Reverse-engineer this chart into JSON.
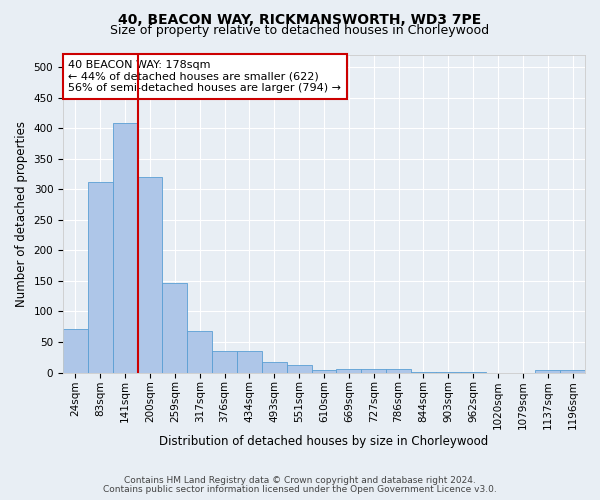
{
  "title1": "40, BEACON WAY, RICKMANSWORTH, WD3 7PE",
  "title2": "Size of property relative to detached houses in Chorleywood",
  "xlabel": "Distribution of detached houses by size in Chorleywood",
  "ylabel": "Number of detached properties",
  "footer1": "Contains HM Land Registry data © Crown copyright and database right 2024.",
  "footer2": "Contains public sector information licensed under the Open Government Licence v3.0.",
  "categories": [
    "24sqm",
    "83sqm",
    "141sqm",
    "200sqm",
    "259sqm",
    "317sqm",
    "376sqm",
    "434sqm",
    "493sqm",
    "551sqm",
    "610sqm",
    "669sqm",
    "727sqm",
    "786sqm",
    "844sqm",
    "903sqm",
    "962sqm",
    "1020sqm",
    "1079sqm",
    "1137sqm",
    "1196sqm"
  ],
  "values": [
    72,
    312,
    408,
    320,
    147,
    68,
    36,
    36,
    17,
    12,
    5,
    6,
    6,
    6,
    1,
    1,
    1,
    0,
    0,
    4,
    4
  ],
  "bar_color": "#aec6e8",
  "bar_edge_color": "#5a9fd4",
  "vline_x": 2.5,
  "vline_color": "#cc0000",
  "annotation_text": "40 BEACON WAY: 178sqm\n← 44% of detached houses are smaller (622)\n56% of semi-detached houses are larger (794) →",
  "annotation_box_color": "#ffffff",
  "annotation_box_edge_color": "#cc0000",
  "ylim": [
    0,
    520
  ],
  "yticks": [
    0,
    50,
    100,
    150,
    200,
    250,
    300,
    350,
    400,
    450,
    500
  ],
  "background_color": "#e8eef4",
  "plot_background_color": "#e8eef4",
  "grid_color": "#ffffff",
  "title1_fontsize": 10,
  "title2_fontsize": 9,
  "xlabel_fontsize": 8.5,
  "ylabel_fontsize": 8.5,
  "tick_fontsize": 7.5,
  "annotation_fontsize": 8,
  "footer_fontsize": 6.5
}
